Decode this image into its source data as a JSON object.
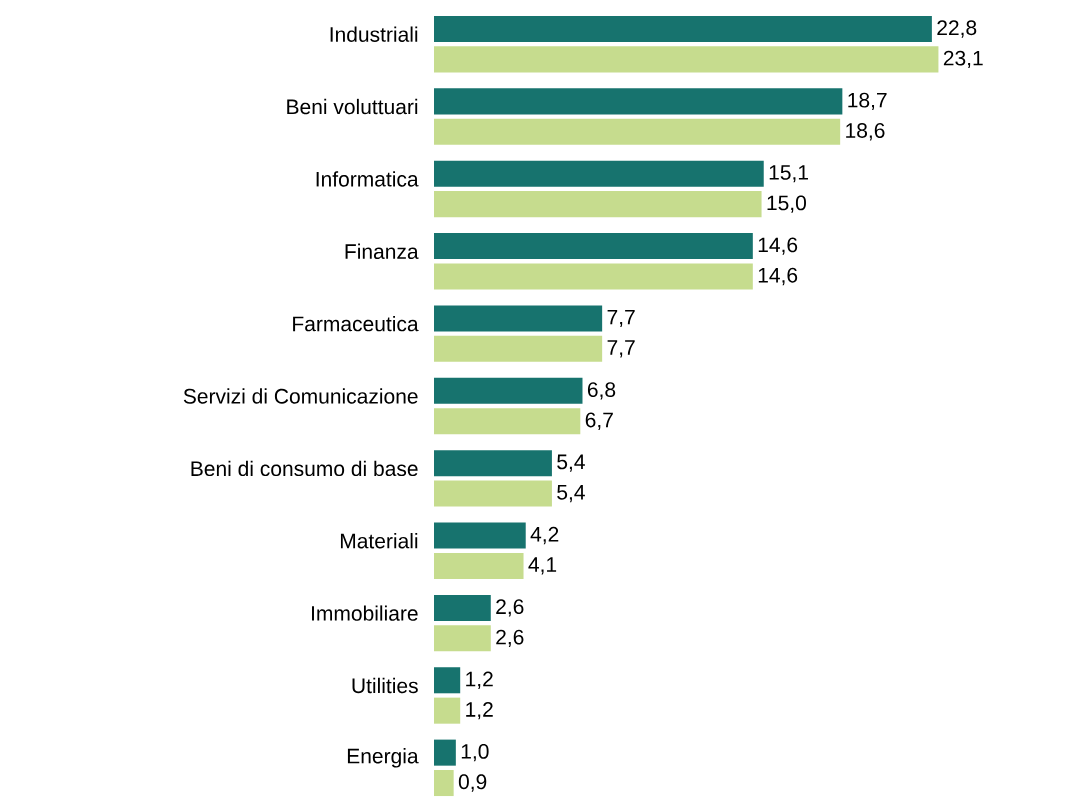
{
  "chart_data": {
    "type": "bar",
    "orientation": "horizontal",
    "categories": [
      "Industriali",
      "Beni voluttuari",
      "Informatica",
      "Finanza",
      "Farmaceutica",
      "Servizi di Comunicazione",
      "Beni di consumo di base",
      "Materiali",
      "Immobiliare",
      "Utilities",
      "Energia"
    ],
    "series": [
      {
        "color": "#17736e",
        "values": [
          22.8,
          18.7,
          15.1,
          14.6,
          7.7,
          6.8,
          5.4,
          4.2,
          2.6,
          1.2,
          1.0
        ],
        "value_labels": [
          "22,8",
          "18,7",
          "15,1",
          "14,6",
          "7,7",
          "6,8",
          "5,4",
          "4,2",
          "2,6",
          "1,2",
          "1,0"
        ]
      },
      {
        "color": "#c6dc8e",
        "values": [
          23.1,
          18.6,
          15.0,
          14.6,
          7.7,
          6.7,
          5.4,
          4.1,
          2.6,
          1.2,
          0.9
        ],
        "value_labels": [
          "23,1",
          "18,6",
          "15,0",
          "14,6",
          "7,7",
          "6,7",
          "5,4",
          "4,1",
          "2,6",
          "1,2",
          "0,9"
        ]
      }
    ]
  }
}
